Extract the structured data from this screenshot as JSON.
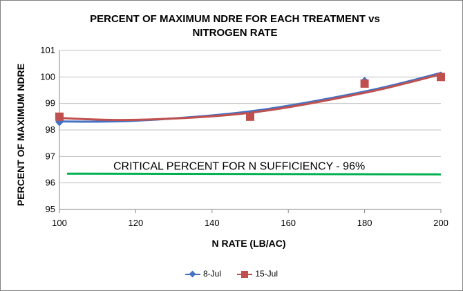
{
  "chart_data": {
    "type": "scatter",
    "title": "PERCENT OF MAXIMUM NDRE FOR EACH TREATMENT vs",
    "title_line2": "NITROGEN RATE",
    "xlabel": "N RATE (LB/AC)",
    "ylabel": "PERCENT OF MAXIMUM NDRE",
    "xlim": [
      100,
      200
    ],
    "ylim": [
      95,
      101
    ],
    "x_ticks": [
      100,
      120,
      140,
      160,
      180,
      200
    ],
    "y_ticks": [
      95,
      96,
      97,
      98,
      99,
      100,
      101
    ],
    "grid": "horizontal",
    "legend_position": "bottom",
    "series": [
      {
        "name": "8-Jul",
        "marker": "diamond",
        "color": "#4472c4",
        "x": [
          100,
          150,
          180,
          200
        ],
        "y": [
          98.3,
          98.55,
          99.85,
          100.05
        ],
        "trendline": {
          "type": "polynomial",
          "x_range": [
            100,
            200
          ],
          "points": [
            [
              100,
              98.32
            ],
            [
              120,
              98.35
            ],
            [
              150,
              98.7
            ],
            [
              180,
              99.45
            ],
            [
              200,
              100.15
            ]
          ]
        }
      },
      {
        "name": "15-Jul",
        "marker": "square",
        "color": "#c0504d",
        "x": [
          100,
          150,
          180,
          200
        ],
        "y": [
          98.5,
          98.5,
          99.75,
          100.0
        ],
        "trendline": {
          "type": "polynomial",
          "x_range": [
            100,
            200
          ],
          "points": [
            [
              100,
              98.45
            ],
            [
              120,
              98.38
            ],
            [
              150,
              98.65
            ],
            [
              180,
              99.4
            ],
            [
              200,
              100.1
            ]
          ]
        }
      }
    ],
    "reference_line": {
      "label": "CRITICAL PERCENT FOR  N SUFFICIENCY - 96%",
      "color": "#00b050",
      "y": 96.35,
      "x_range": [
        102,
        200
      ]
    }
  }
}
